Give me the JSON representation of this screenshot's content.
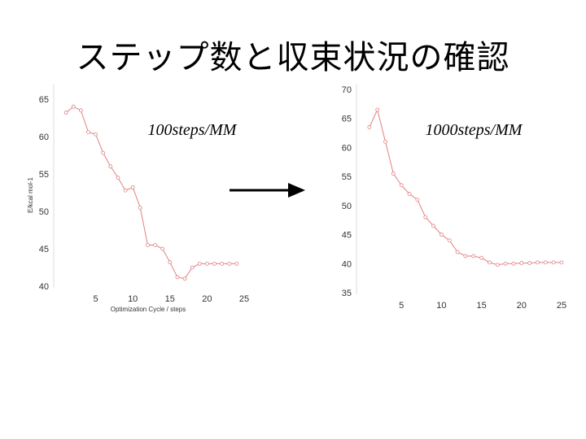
{
  "slide": {
    "title": "ステップ数と収束状況の確認"
  },
  "chart_data": [
    {
      "type": "line",
      "annotation": "100steps/MM",
      "xlabel": "Optimization Cycle / steps",
      "ylabel": "E/kcal mol-1",
      "xlim": [
        0,
        25
      ],
      "ylim": [
        40,
        65
      ],
      "xticks": [
        5,
        10,
        15,
        20,
        25
      ],
      "yticks": [
        40,
        45,
        50,
        55,
        60,
        65
      ],
      "color": "#e08080",
      "series": [
        {
          "x": [
            1,
            2,
            3,
            4,
            5,
            6,
            7,
            8,
            9,
            10,
            11,
            12,
            13,
            14,
            15,
            16,
            17,
            18,
            19,
            20,
            21,
            22,
            23,
            24
          ],
          "values": [
            63.2,
            64.0,
            63.5,
            60.6,
            60.3,
            57.8,
            56.0,
            54.5,
            52.8,
            53.2,
            50.5,
            45.5,
            45.5,
            45.0,
            43.2,
            41.2,
            41.0,
            42.5,
            43.0,
            43.0,
            43.0,
            43.0,
            43.0,
            43.0
          ]
        }
      ]
    },
    {
      "type": "line",
      "annotation": "1000steps/MM",
      "xlabel": "",
      "ylabel": "",
      "xlim": [
        0,
        25
      ],
      "ylim": [
        35,
        70
      ],
      "xticks": [
        5,
        10,
        15,
        20,
        25
      ],
      "yticks": [
        35,
        40,
        45,
        50,
        55,
        60,
        65,
        70
      ],
      "color": "#e08080",
      "series": [
        {
          "x": [
            1,
            2,
            3,
            4,
            5,
            6,
            7,
            8,
            9,
            10,
            11,
            12,
            13,
            14,
            15,
            16,
            17,
            18,
            19,
            20,
            21,
            22,
            23,
            24,
            25
          ],
          "values": [
            63.5,
            66.5,
            61.0,
            55.5,
            53.5,
            52.0,
            51.0,
            48.0,
            46.5,
            45.0,
            44.0,
            42.0,
            41.3,
            41.3,
            41.0,
            40.2,
            39.8,
            40.0,
            40.0,
            40.1,
            40.1,
            40.2,
            40.2,
            40.2,
            40.2
          ]
        }
      ]
    }
  ]
}
